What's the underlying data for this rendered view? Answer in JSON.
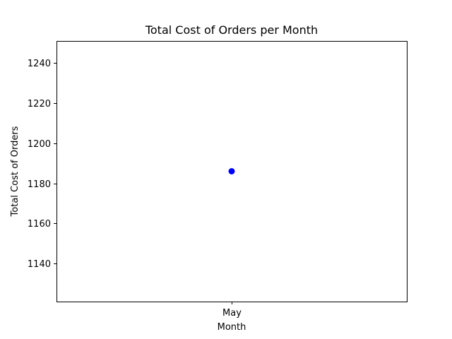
{
  "chart_data": {
    "type": "scatter",
    "title": "Total Cost of Orders per Month",
    "xlabel": "Month",
    "ylabel": "Total Cost of Orders",
    "categories": [
      "May"
    ],
    "series": [
      {
        "values": [
          1186
        ],
        "color": "#0000ff"
      }
    ],
    "ylim": [
      1121,
      1251
    ],
    "yticks": [
      1140,
      1160,
      1180,
      1200,
      1220,
      1240
    ],
    "grid": false,
    "legend": "none"
  }
}
